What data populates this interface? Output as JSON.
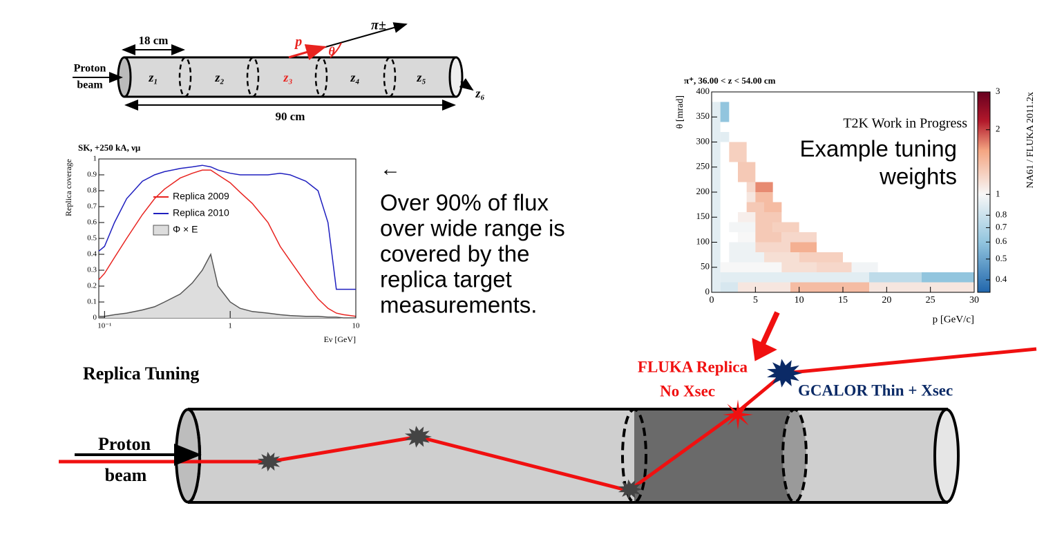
{
  "target_diagram": {
    "length_segment": "18 cm",
    "beam_label": [
      "Proton",
      "beam"
    ],
    "zones": [
      "z₁",
      "z₂",
      "z₃",
      "z₄",
      "z₅"
    ],
    "exit_zone": "z₆",
    "momentum": "p⃗",
    "angle": "θ",
    "particle": "π±",
    "total_length": "90 cm"
  },
  "text_panel": {
    "arrow": "←",
    "lines": [
      "Over 90% of flux",
      "over wide range is",
      "covered by the",
      "replica target",
      "measurements."
    ]
  },
  "overlay": {
    "line1": "Example tuning",
    "line2": "weights"
  },
  "tuning_diagram": {
    "title": "Replica Tuning",
    "beam_label": [
      "Proton",
      "beam"
    ],
    "fluka_label": [
      "FLUKA Replica",
      "No Xsec"
    ],
    "gcalor_label": "GCALOR Thin + Xsec"
  },
  "chart_data": [
    {
      "type": "line",
      "title": "SK, +250 kA, νμ",
      "x_label": "Eν [GeV]",
      "y_label": "Replica coverage",
      "log_x": true,
      "x": [
        0.09,
        0.1,
        0.12,
        0.15,
        0.2,
        0.25,
        0.3,
        0.4,
        0.5,
        0.6,
        0.7,
        0.8,
        1,
        1.2,
        1.5,
        2,
        2.5,
        3,
        4,
        5,
        6,
        7,
        8,
        10
      ],
      "series": [
        {
          "name": "Replica 2009",
          "color": "#e8231f",
          "values": [
            0.24,
            0.28,
            0.38,
            0.5,
            0.65,
            0.75,
            0.81,
            0.88,
            0.91,
            0.93,
            0.93,
            0.9,
            0.85,
            0.79,
            0.72,
            0.6,
            0.45,
            0.36,
            0.22,
            0.12,
            0.06,
            0.03,
            0.02,
            0.01
          ]
        },
        {
          "name": "Replica 2010",
          "color": "#1f1fbf",
          "values": [
            0.42,
            0.45,
            0.6,
            0.75,
            0.86,
            0.9,
            0.92,
            0.94,
            0.95,
            0.96,
            0.95,
            0.93,
            0.91,
            0.9,
            0.9,
            0.9,
            0.91,
            0.9,
            0.86,
            0.8,
            0.6,
            0.18,
            0.18,
            0.18
          ]
        },
        {
          "name": "Φ × E",
          "color": "#555555",
          "fill": "#dddddd",
          "area": true,
          "values": [
            0.01,
            0.01,
            0.02,
            0.03,
            0.05,
            0.07,
            0.1,
            0.15,
            0.22,
            0.3,
            0.4,
            0.2,
            0.1,
            0.06,
            0.04,
            0.03,
            0.02,
            0.015,
            0.01,
            0.01,
            0.005,
            0.005,
            0,
            0
          ]
        }
      ],
      "xlim": [
        0.09,
        10
      ],
      "xticks": [
        {
          "value": 0.1,
          "label": "10⁻¹"
        },
        1,
        10
      ],
      "ylim": [
        0,
        1
      ],
      "yticks": [
        0,
        0.1,
        0.2,
        0.3,
        0.4,
        0.5,
        0.6,
        0.7,
        0.8,
        0.9,
        1
      ]
    },
    {
      "type": "heatmap",
      "title": "π⁺, 36.00 < z < 54.00 cm",
      "annotation": "T2K Work in Progress",
      "x_label": "p [GeV/c]",
      "y_label": "θ [mrad]",
      "colorbar_label": "NA61 / FLUKA 2011.2x",
      "xlim": [
        0,
        30
      ],
      "xticks": [
        0,
        5,
        10,
        15,
        20,
        25,
        30
      ],
      "ylim": [
        0,
        400
      ],
      "yticks": [
        0,
        50,
        100,
        150,
        200,
        250,
        300,
        350,
        400
      ],
      "zlim": [
        0.35,
        3
      ],
      "log_z": true,
      "zticks": [
        0.4,
        0.5,
        0.6,
        0.7,
        0.8,
        1,
        2,
        3
      ],
      "colormap": [
        {
          "value": 0.35,
          "color": "#2166ac"
        },
        {
          "value": 0.6,
          "color": "#92c5de"
        },
        {
          "value": 1,
          "color": "#f7f7f7"
        },
        {
          "value": 1.6,
          "color": "#f4a582"
        },
        {
          "value": 2.2,
          "color": "#b2182b"
        },
        {
          "value": 3,
          "color": "#67001f"
        }
      ],
      "cells": [
        [
          0,
          1,
          0,
          380,
          0.9
        ],
        [
          1,
          3,
          0,
          20,
          0.85
        ],
        [
          3,
          9,
          0,
          20,
          1.1
        ],
        [
          9,
          18,
          0,
          20,
          1.4
        ],
        [
          18,
          30,
          0,
          20,
          1.1
        ],
        [
          1,
          18,
          20,
          40,
          0.9
        ],
        [
          18,
          24,
          20,
          40,
          0.75
        ],
        [
          24,
          30,
          20,
          40,
          0.6
        ],
        [
          1,
          8,
          40,
          60,
          1.0
        ],
        [
          8,
          12,
          40,
          60,
          1.15
        ],
        [
          12,
          16,
          40,
          60,
          1.2
        ],
        [
          16,
          19,
          40,
          60,
          0.97
        ],
        [
          2,
          6,
          60,
          80,
          0.95
        ],
        [
          6,
          10,
          60,
          80,
          1.15
        ],
        [
          10,
          15,
          60,
          80,
          1.25
        ],
        [
          2,
          5,
          80,
          100,
          0.95
        ],
        [
          5,
          9,
          80,
          100,
          1.2
        ],
        [
          9,
          12,
          80,
          100,
          1.5
        ],
        [
          3,
          5,
          100,
          120,
          1.0
        ],
        [
          5,
          8,
          100,
          120,
          1.3
        ],
        [
          8,
          12,
          100,
          120,
          1.2
        ],
        [
          2,
          5,
          120,
          140,
          0.98
        ],
        [
          5,
          7,
          120,
          140,
          1.3
        ],
        [
          7,
          10,
          120,
          140,
          1.25
        ],
        [
          3,
          5,
          140,
          160,
          1.05
        ],
        [
          5,
          8,
          140,
          160,
          1.3
        ],
        [
          4,
          6,
          160,
          180,
          1.3
        ],
        [
          6,
          8,
          160,
          180,
          1.4
        ],
        [
          4,
          5,
          180,
          200,
          1.1
        ],
        [
          5,
          7,
          180,
          200,
          1.4
        ],
        [
          4,
          5,
          200,
          220,
          1.2
        ],
        [
          5,
          7,
          200,
          220,
          1.7
        ],
        [
          3,
          5,
          220,
          260,
          1.3
        ],
        [
          2,
          4,
          260,
          300,
          1.25
        ],
        [
          1,
          2,
          300,
          320,
          0.9
        ],
        [
          1,
          2,
          340,
          380,
          0.6
        ]
      ]
    }
  ]
}
